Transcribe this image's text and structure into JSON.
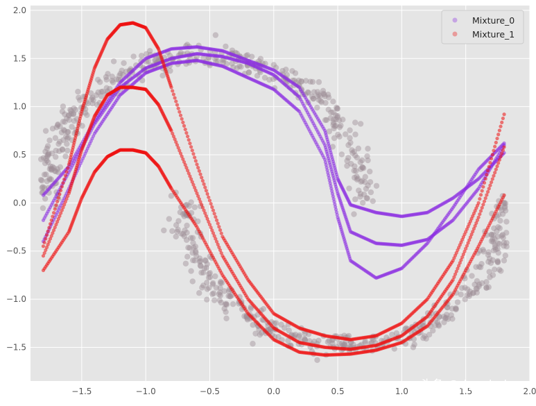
{
  "chart_data": {
    "type": "scatter",
    "title": "",
    "xlabel": "",
    "ylabel": "",
    "xlim": [
      -1.9,
      2.0
    ],
    "ylim": [
      -1.85,
      2.05
    ],
    "xticks": [
      "−1.5",
      "−1.0",
      "−0.5",
      "0.0",
      "0.5",
      "1.0",
      "1.5",
      "2.0"
    ],
    "xtick_values": [
      -1.5,
      -1.0,
      -0.5,
      0.0,
      0.5,
      1.0,
      1.5,
      2.0
    ],
    "yticks": [
      "−1.5",
      "−1.0",
      "−0.5",
      "0.0",
      "0.5",
      "1.0",
      "1.5",
      "2.0"
    ],
    "ytick_values": [
      -1.5,
      -1.0,
      -0.5,
      0.0,
      0.5,
      1.0,
      1.5,
      2.0
    ],
    "grid": true,
    "legend_position": "top-right",
    "background_color": "#e5e5e5",
    "series": [
      {
        "name": "Mixture_0",
        "color": "#8a2be2",
        "curves": [
          {
            "x": [
              -1.8,
              -1.6,
              -1.4,
              -1.2,
              -1.0,
              -0.8,
              -0.6,
              -0.4,
              -0.2,
              0.0,
              0.2,
              0.4,
              0.5,
              0.6,
              0.8,
              1.0,
              1.2,
              1.4,
              1.6,
              1.8
            ],
            "y": [
              0.08,
              0.38,
              0.85,
              1.25,
              1.5,
              1.6,
              1.62,
              1.58,
              1.48,
              1.38,
              1.2,
              0.75,
              0.25,
              -0.02,
              -0.1,
              -0.14,
              -0.1,
              0.05,
              0.25,
              0.52
            ]
          },
          {
            "x": [
              -1.8,
              -1.6,
              -1.4,
              -1.2,
              -1.0,
              -0.8,
              -0.6,
              -0.4,
              -0.2,
              0.0,
              0.2,
              0.4,
              0.5,
              0.6,
              0.8,
              1.0,
              1.2,
              1.4,
              1.6,
              1.8
            ],
            "y": [
              -0.18,
              0.32,
              0.82,
              1.2,
              1.4,
              1.5,
              1.55,
              1.52,
              1.45,
              1.33,
              1.1,
              0.6,
              0.1,
              -0.3,
              -0.42,
              -0.44,
              -0.38,
              -0.18,
              0.15,
              0.6
            ]
          },
          {
            "x": [
              -1.8,
              -1.6,
              -1.4,
              -1.2,
              -1.0,
              -0.8,
              -0.6,
              -0.4,
              -0.2,
              0.0,
              0.2,
              0.4,
              0.5,
              0.6,
              0.8,
              1.0,
              1.2,
              1.4,
              1.6,
              1.8
            ],
            "y": [
              -0.4,
              0.15,
              0.72,
              1.12,
              1.35,
              1.45,
              1.48,
              1.42,
              1.3,
              1.18,
              0.95,
              0.45,
              -0.15,
              -0.6,
              -0.78,
              -0.68,
              -0.42,
              -0.05,
              0.35,
              0.62
            ]
          }
        ]
      },
      {
        "name": "Mixture_1",
        "color": "#ee1111",
        "curves": [
          {
            "x": [
              -1.8,
              -1.6,
              -1.5,
              -1.4,
              -1.3,
              -1.2,
              -1.1,
              -1.0,
              -0.9,
              -0.8,
              -0.6,
              -0.4,
              -0.2,
              0.0,
              0.2,
              0.4,
              0.6,
              0.8,
              1.0,
              1.2,
              1.4,
              1.6,
              1.8
            ],
            "y": [
              -0.45,
              0.4,
              0.95,
              1.4,
              1.7,
              1.85,
              1.87,
              1.82,
              1.6,
              1.2,
              0.4,
              -0.35,
              -0.8,
              -1.15,
              -1.3,
              -1.38,
              -1.42,
              -1.38,
              -1.25,
              -1.0,
              -0.6,
              0.0,
              0.92
            ]
          },
          {
            "x": [
              -1.8,
              -1.6,
              -1.5,
              -1.4,
              -1.3,
              -1.2,
              -1.1,
              -1.0,
              -0.9,
              -0.8,
              -0.6,
              -0.4,
              -0.2,
              0.0,
              0.2,
              0.4,
              0.6,
              0.8,
              1.0,
              1.2,
              1.4,
              1.6,
              1.8
            ],
            "y": [
              -0.55,
              0.1,
              0.55,
              0.9,
              1.12,
              1.2,
              1.2,
              1.18,
              1.02,
              0.75,
              0.1,
              -0.55,
              -1.0,
              -1.3,
              -1.45,
              -1.5,
              -1.52,
              -1.48,
              -1.38,
              -1.18,
              -0.8,
              -0.15,
              0.58
            ]
          },
          {
            "x": [
              -1.8,
              -1.6,
              -1.5,
              -1.4,
              -1.3,
              -1.2,
              -1.1,
              -1.0,
              -0.9,
              -0.8,
              -0.6,
              -0.4,
              -0.2,
              0.0,
              0.2,
              0.4,
              0.6,
              0.8,
              1.0,
              1.2,
              1.4,
              1.6,
              1.8
            ],
            "y": [
              -0.7,
              -0.3,
              0.05,
              0.32,
              0.48,
              0.55,
              0.55,
              0.52,
              0.38,
              0.15,
              -0.25,
              -0.75,
              -1.15,
              -1.42,
              -1.55,
              -1.58,
              -1.57,
              -1.53,
              -1.45,
              -1.28,
              -0.95,
              -0.45,
              0.08
            ]
          }
        ]
      }
    ],
    "data_samples": {
      "color": "#9e8e96",
      "label": ""
    }
  },
  "watermark": "头条 @deephub"
}
